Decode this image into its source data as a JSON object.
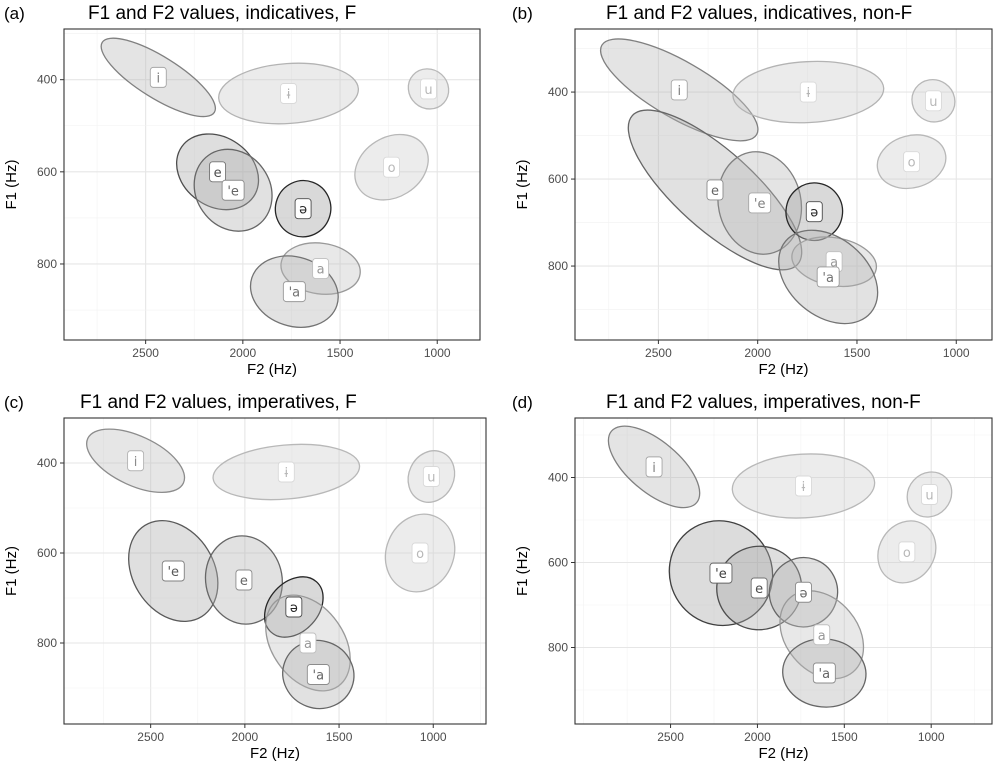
{
  "chart_data": [
    {
      "type": "scatter",
      "panel_label": "(a)",
      "title": "F1 and F2 values, indicatives, F",
      "xlabel": "F2 (Hz)",
      "ylabel": "F1 (Hz)",
      "x_reversed": true,
      "y_reversed": true,
      "xlim": [
        2920,
        780
      ],
      "ylim": [
        290,
        965
      ],
      "xticks": [
        2500,
        2000,
        1500,
        1000
      ],
      "yticks": [
        400,
        600,
        800
      ],
      "grid": true,
      "ellipses": [
        {
          "label": "i",
          "cx": 2435,
          "cy": 395,
          "rx": 340,
          "ry": 45,
          "angle": 32,
          "shade": 0.5
        },
        {
          "label": "ɨ",
          "cx": 1765,
          "cy": 430,
          "rx": 360,
          "ry": 65,
          "angle": -4,
          "shade": 0.7
        },
        {
          "label": "u",
          "cx": 1045,
          "cy": 420,
          "rx": 100,
          "ry": 45,
          "angle": -48,
          "shade": 0.72
        },
        {
          "label": "o",
          "cx": 1235,
          "cy": 590,
          "rx": 200,
          "ry": 65,
          "angle": -32,
          "shade": 0.72
        },
        {
          "label": "e",
          "cx": 2130,
          "cy": 600,
          "rx": 225,
          "ry": 75,
          "angle": 35,
          "shade": 0.3
        },
        {
          "label": "'e",
          "cx": 2050,
          "cy": 640,
          "rx": 220,
          "ry": 80,
          "angle": 55,
          "shade": 0.4
        },
        {
          "label": "ə",
          "cx": 1690,
          "cy": 680,
          "rx": 145,
          "ry": 60,
          "angle": -70,
          "shade": 0.15
        },
        {
          "label": "a",
          "cx": 1600,
          "cy": 810,
          "rx": 205,
          "ry": 55,
          "angle": 8,
          "shade": 0.6
        },
        {
          "label": "'a",
          "cx": 1735,
          "cy": 860,
          "rx": 230,
          "ry": 75,
          "angle": 18,
          "shade": 0.45
        }
      ]
    },
    {
      "type": "scatter",
      "panel_label": "(b)",
      "title": "F1 and F2 values, indicatives, non-F",
      "xlabel": "F2 (Hz)",
      "ylabel": "F1 (Hz)",
      "x_reversed": true,
      "y_reversed": true,
      "xlim": [
        2920,
        820
      ],
      "ylim": [
        255,
        970
      ],
      "xticks": [
        2500,
        2000,
        1500,
        1000
      ],
      "yticks": [
        400,
        600,
        800
      ],
      "grid": true,
      "ellipses": [
        {
          "label": "i",
          "cx": 2395,
          "cy": 395,
          "rx": 450,
          "ry": 65,
          "angle": 30,
          "shade": 0.5
        },
        {
          "label": "ɨ",
          "cx": 1745,
          "cy": 400,
          "rx": 380,
          "ry": 70,
          "angle": -3,
          "shade": 0.7
        },
        {
          "label": "u",
          "cx": 1115,
          "cy": 420,
          "rx": 105,
          "ry": 50,
          "angle": -55,
          "shade": 0.72
        },
        {
          "label": "o",
          "cx": 1225,
          "cy": 560,
          "rx": 175,
          "ry": 60,
          "angle": -15,
          "shade": 0.72
        },
        {
          "label": "e",
          "cx": 2215,
          "cy": 625,
          "rx": 560,
          "ry": 90,
          "angle": 42,
          "shade": 0.4
        },
        {
          "label": "'e",
          "cx": 1990,
          "cy": 655,
          "rx": 260,
          "ry": 95,
          "angle": 78,
          "shade": 0.5
        },
        {
          "label": "ə",
          "cx": 1715,
          "cy": 675,
          "rx": 145,
          "ry": 65,
          "angle": -80,
          "shade": 0.15
        },
        {
          "label": "a",
          "cx": 1615,
          "cy": 790,
          "rx": 215,
          "ry": 55,
          "angle": 10,
          "shade": 0.6
        },
        {
          "label": "'a",
          "cx": 1645,
          "cy": 825,
          "rx": 280,
          "ry": 90,
          "angle": 40,
          "shade": 0.45
        }
      ]
    },
    {
      "type": "scatter",
      "panel_label": "(c)",
      "title": "F1 and F2 values, imperatives, F",
      "xlabel": "F2 (Hz)",
      "ylabel": "F1 (Hz)",
      "x_reversed": true,
      "y_reversed": true,
      "xlim": [
        2960,
        720
      ],
      "ylim": [
        300,
        980
      ],
      "xticks": [
        2500,
        2000,
        1500,
        1000
      ],
      "yticks": [
        400,
        600,
        800
      ],
      "grid": true,
      "ellipses": [
        {
          "label": "i",
          "cx": 2580,
          "cy": 395,
          "rx": 280,
          "ry": 55,
          "angle": 25,
          "shade": 0.55
        },
        {
          "label": "ɨ",
          "cx": 1780,
          "cy": 420,
          "rx": 390,
          "ry": 60,
          "angle": -5,
          "shade": 0.72
        },
        {
          "label": "u",
          "cx": 1010,
          "cy": 430,
          "rx": 140,
          "ry": 50,
          "angle": -65,
          "shade": 0.72
        },
        {
          "label": "o",
          "cx": 1070,
          "cy": 600,
          "rx": 210,
          "ry": 75,
          "angle": -68,
          "shade": 0.72
        },
        {
          "label": "'e",
          "cx": 2380,
          "cy": 640,
          "rx": 285,
          "ry": 90,
          "angle": 58,
          "shade": 0.35
        },
        {
          "label": "e",
          "cx": 2005,
          "cy": 660,
          "rx": 235,
          "ry": 85,
          "angle": 80,
          "shade": 0.4
        },
        {
          "label": "ə",
          "cx": 1740,
          "cy": 720,
          "rx": 180,
          "ry": 55,
          "angle": -48,
          "shade": 0.15
        },
        {
          "label": "a",
          "cx": 1665,
          "cy": 800,
          "rx": 280,
          "ry": 80,
          "angle": 55,
          "shade": 0.6
        },
        {
          "label": "'a",
          "cx": 1610,
          "cy": 870,
          "rx": 190,
          "ry": 75,
          "angle": 20,
          "shade": 0.4
        }
      ]
    },
    {
      "type": "scatter",
      "panel_label": "(d)",
      "title": "F1 and F2 values, imperatives, non-F",
      "xlabel": "F2 (Hz)",
      "ylabel": "F1 (Hz)",
      "x_reversed": true,
      "y_reversed": true,
      "xlim": [
        3050,
        650
      ],
      "ylim": [
        260,
        980
      ],
      "xticks": [
        2500,
        2000,
        1500,
        1000
      ],
      "yticks": [
        400,
        600,
        800
      ],
      "grid": true,
      "ellipses": [
        {
          "label": "i",
          "cx": 2595,
          "cy": 375,
          "rx": 320,
          "ry": 60,
          "angle": 40,
          "shade": 0.5
        },
        {
          "label": "ɨ",
          "cx": 1735,
          "cy": 420,
          "rx": 410,
          "ry": 75,
          "angle": -3,
          "shade": 0.72
        },
        {
          "label": "u",
          "cx": 1010,
          "cy": 440,
          "rx": 135,
          "ry": 50,
          "angle": -48,
          "shade": 0.72
        },
        {
          "label": "o",
          "cx": 1140,
          "cy": 575,
          "rx": 185,
          "ry": 65,
          "angle": -58,
          "shade": 0.72
        },
        {
          "label": "'e",
          "cx": 2210,
          "cy": 625,
          "rx": 305,
          "ry": 120,
          "angle": 55,
          "shade": 0.25
        },
        {
          "label": "e",
          "cx": 1990,
          "cy": 660,
          "rx": 240,
          "ry": 100,
          "angle": 72,
          "shade": 0.3
        },
        {
          "label": "ə",
          "cx": 1735,
          "cy": 670,
          "rx": 200,
          "ry": 80,
          "angle": -72,
          "shade": 0.4
        },
        {
          "label": "a",
          "cx": 1630,
          "cy": 770,
          "rx": 280,
          "ry": 85,
          "angle": 50,
          "shade": 0.6
        },
        {
          "label": "'a",
          "cx": 1615,
          "cy": 860,
          "rx": 240,
          "ry": 80,
          "angle": 5,
          "shade": 0.4
        }
      ]
    }
  ]
}
